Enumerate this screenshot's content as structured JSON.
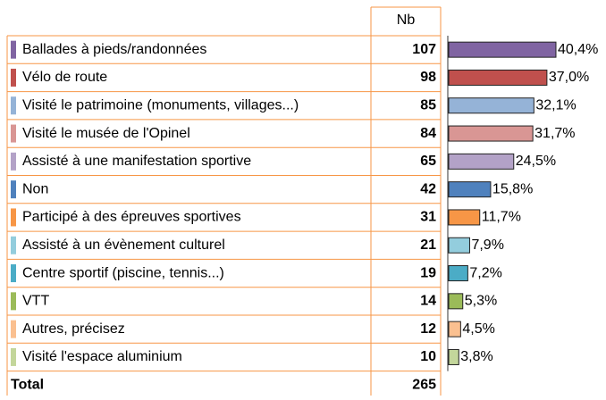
{
  "chart_data": {
    "type": "bar",
    "column_header": "Nb",
    "categories": [
      "Ballades à pieds/randonnées",
      "Vélo de route",
      "Visité le patrimoine (monuments, villages...)",
      "Visité le musée de l'Opinel",
      "Assisté à une manifestation sportive",
      "Non",
      "Participé à des épreuves sportives",
      "Assisté à un évènement culturel",
      "Centre sportif (piscine, tennis...)",
      "VTT",
      "Autres, précisez",
      "Visité l'espace aluminium"
    ],
    "counts": [
      107,
      98,
      85,
      84,
      65,
      42,
      31,
      21,
      19,
      14,
      12,
      10
    ],
    "values": [
      40.4,
      37.0,
      32.1,
      31.7,
      24.5,
      15.8,
      11.7,
      7.9,
      7.2,
      5.3,
      4.5,
      3.8
    ],
    "value_labels": [
      "40,4%",
      "37,0%",
      "32,1%",
      "31,7%",
      "24,5%",
      "15,8%",
      "11,7%",
      "7,9%",
      "7,2%",
      "5,3%",
      "4,5%",
      "3,8%"
    ],
    "colors": [
      "#8064a2",
      "#c0504d",
      "#95b3d7",
      "#d99694",
      "#b3a2c7",
      "#4f81bd",
      "#f79646",
      "#93cddd",
      "#4bacc6",
      "#9bbb59",
      "#fac090",
      "#c3d69b"
    ],
    "total_label": "Total",
    "total": 265
  }
}
